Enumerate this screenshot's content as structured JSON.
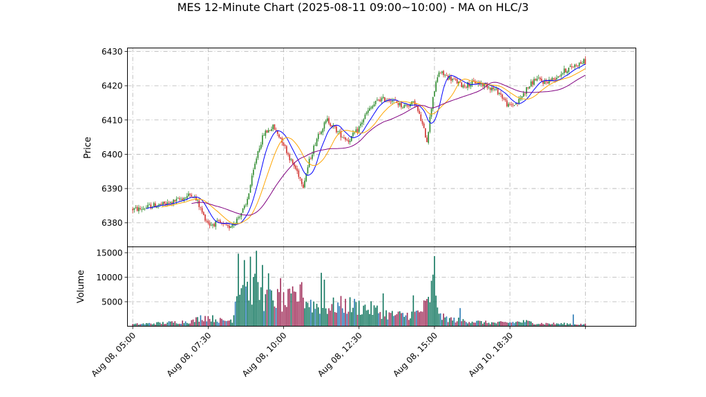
{
  "chart_data": {
    "title": "MES 12-Minute Chart (2025-08-11 09:00~10:00) - MA on HLC/3",
    "type": "candlestick",
    "price_panel": {
      "ylabel": "Price",
      "ylim": [
        6373,
        6431
      ],
      "yticks": [
        6380,
        6390,
        6400,
        6410,
        6420,
        6430
      ],
      "grid": true
    },
    "volume_panel": {
      "ylabel": "Volume",
      "ylim": [
        0,
        16200
      ],
      "yticks": [
        5000,
        10000,
        15000
      ],
      "grid": true
    },
    "x_axis": {
      "range": [
        -3.5,
        333.5
      ],
      "ticks": [
        {
          "label": "Aug 08, 05:00",
          "index": 0
        },
        {
          "label": "Aug 08, 07:30",
          "index": 50
        },
        {
          "label": "Aug 08, 10:00",
          "index": 100
        },
        {
          "label": "Aug 08, 12:30",
          "index": 150
        },
        {
          "label": "Aug 08, 15:00",
          "index": 200
        },
        {
          "label": "Aug 10, 18:30",
          "index": 250
        },
        {
          "label": "",
          "index": 300
        }
      ]
    },
    "candle_count": 301,
    "colors": {
      "up": "#2e8b2e",
      "down": "#d0312d",
      "ma_fast": "#0000ff",
      "ma_mid": "#ffa500",
      "ma_slow": "#800080",
      "vol_up": "#12775f",
      "vol_down": "#a1305b",
      "vol_flat": "#2a7bb5",
      "grid": "#b0b0b0"
    },
    "price_anchors": [
      [
        0,
        6384
      ],
      [
        6,
        6384
      ],
      [
        14,
        6385
      ],
      [
        24,
        6385.5
      ],
      [
        36,
        6387.5
      ],
      [
        40,
        6388.5
      ],
      [
        44,
        6386
      ],
      [
        48,
        6382
      ],
      [
        52,
        6379.5
      ],
      [
        58,
        6380
      ],
      [
        64,
        6378.5
      ],
      [
        70,
        6381
      ],
      [
        76,
        6385
      ],
      [
        80,
        6393
      ],
      [
        84,
        6401
      ],
      [
        88,
        6406
      ],
      [
        94,
        6408
      ],
      [
        100,
        6404
      ],
      [
        106,
        6398
      ],
      [
        110,
        6395
      ],
      [
        114,
        6391
      ],
      [
        118,
        6398
      ],
      [
        124,
        6406
      ],
      [
        130,
        6410
      ],
      [
        138,
        6406
      ],
      [
        144,
        6404
      ],
      [
        150,
        6407
      ],
      [
        156,
        6412
      ],
      [
        164,
        6416
      ],
      [
        172,
        6416
      ],
      [
        180,
        6414
      ],
      [
        188,
        6415
      ],
      [
        192,
        6410
      ],
      [
        196,
        6404
      ],
      [
        200,
        6417
      ],
      [
        204,
        6424
      ],
      [
        212,
        6422
      ],
      [
        220,
        6420
      ],
      [
        228,
        6421
      ],
      [
        236,
        6420
      ],
      [
        244,
        6418
      ],
      [
        250,
        6414
      ],
      [
        256,
        6415
      ],
      [
        262,
        6419
      ],
      [
        268,
        6422
      ],
      [
        274,
        6421
      ],
      [
        280,
        6422
      ],
      [
        286,
        6424
      ],
      [
        294,
        6426
      ],
      [
        300,
        6427
      ]
    ],
    "volume_anchors": [
      [
        0,
        400
      ],
      [
        20,
        700
      ],
      [
        30,
        900
      ],
      [
        40,
        1100
      ],
      [
        46,
        2000
      ],
      [
        50,
        1900
      ],
      [
        60,
        1100
      ],
      [
        66,
        1400
      ],
      [
        70,
        9500
      ],
      [
        76,
        8500
      ],
      [
        80,
        8000
      ],
      [
        84,
        7000
      ],
      [
        88,
        5500
      ],
      [
        94,
        6000
      ],
      [
        100,
        5000
      ],
      [
        110,
        6500
      ],
      [
        120,
        4500
      ],
      [
        130,
        4200
      ],
      [
        140,
        4500
      ],
      [
        150,
        4200
      ],
      [
        160,
        3500
      ],
      [
        170,
        2500
      ],
      [
        180,
        2300
      ],
      [
        190,
        3000
      ],
      [
        196,
        5000
      ],
      [
        199,
        9000
      ],
      [
        201,
        7000
      ],
      [
        204,
        2000
      ],
      [
        212,
        1400
      ],
      [
        220,
        1200
      ],
      [
        230,
        900
      ],
      [
        240,
        700
      ],
      [
        250,
        800
      ],
      [
        260,
        1000
      ],
      [
        270,
        600
      ],
      [
        280,
        550
      ],
      [
        290,
        500
      ],
      [
        300,
        400
      ]
    ],
    "volume_spikes": [
      [
        70,
        14800
      ],
      [
        74,
        13500
      ],
      [
        78,
        14200
      ],
      [
        82,
        15400
      ],
      [
        86,
        12500
      ],
      [
        90,
        10800
      ],
      [
        98,
        9800
      ],
      [
        112,
        9000
      ],
      [
        125,
        10900
      ],
      [
        127,
        9500
      ],
      [
        200,
        14300
      ],
      [
        166,
        6700
      ],
      [
        186,
        6300
      ],
      [
        217,
        3700
      ],
      [
        292,
        2400
      ]
    ],
    "ma": [
      {
        "name": "fast",
        "period": 10
      },
      {
        "name": "mid",
        "period": 20
      },
      {
        "name": "slow",
        "period": 40
      }
    ]
  }
}
